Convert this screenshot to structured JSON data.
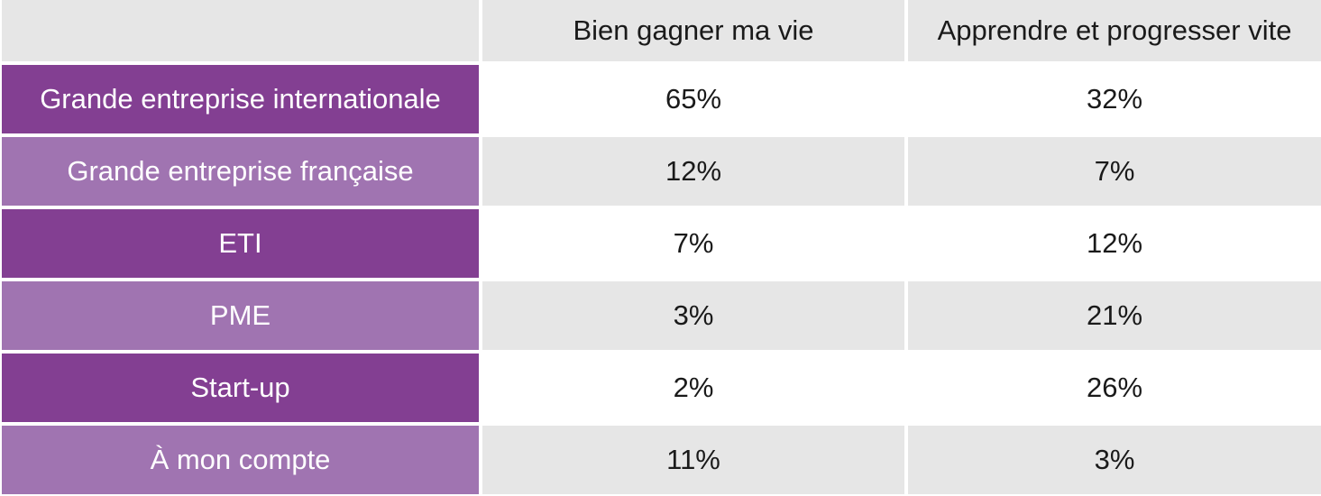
{
  "colors": {
    "header_bg": "#e6e6e6",
    "label_dark": "#833f92",
    "label_light": "#a074b1",
    "row_alt_bg": "#e6e6e6",
    "row_bg": "#ffffff",
    "label_text": "#ffffff",
    "value_text": "#1a1a1a"
  },
  "chart_data": {
    "type": "table",
    "columns": [
      "",
      "Bien gagner ma vie",
      "Apprendre et progresser vite"
    ],
    "rows": [
      {
        "label": "Grande entreprise internationale",
        "values": [
          "65%",
          "32%"
        ]
      },
      {
        "label": "Grande entreprise française",
        "values": [
          "12%",
          "7%"
        ]
      },
      {
        "label": "ETI",
        "values": [
          "7%",
          "12%"
        ]
      },
      {
        "label": "PME",
        "values": [
          "3%",
          "21%"
        ]
      },
      {
        "label": "Start-up",
        "values": [
          "2%",
          "26%"
        ]
      },
      {
        "label": "À mon compte",
        "values": [
          "11%",
          "3%"
        ]
      }
    ]
  }
}
